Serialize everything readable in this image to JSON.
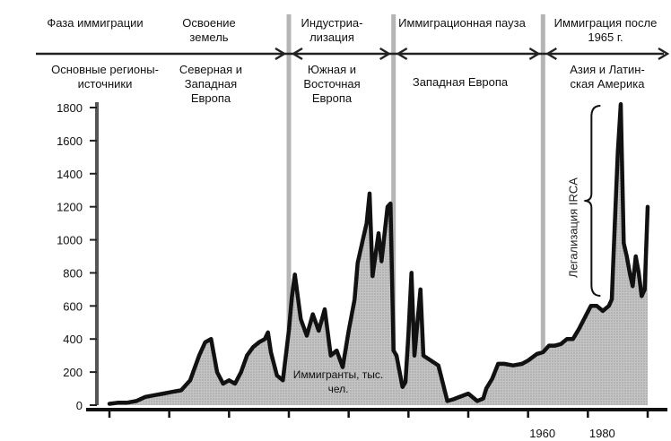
{
  "chart_data": {
    "type": "area",
    "title": "",
    "xlabel": "",
    "ylabel": "",
    "ylim": [
      0,
      1800
    ],
    "xlim": [
      1820,
      2000
    ],
    "yticks": [
      0,
      200,
      400,
      600,
      800,
      1000,
      1200,
      1400,
      1600,
      1800
    ],
    "xtick_labels": [
      {
        "x": 1960,
        "label": "1960"
      },
      {
        "x": 1980,
        "label": "1980"
      }
    ],
    "phase_header": {
      "row_label": "Фаза иммиграции",
      "source_row_label": "Основные регионы-источники",
      "phases": [
        {
          "name": "Освоение земель",
          "sources": "Северная и Западная Европа",
          "start": 1820,
          "end": 1880
        },
        {
          "name": "Индустриа-лизация",
          "sources": "Южная и Восточная Европа",
          "start": 1880,
          "end": 1915
        },
        {
          "name": "Иммиграционная пауза",
          "sources": "Западная Европа",
          "start": 1915,
          "end": 1965
        },
        {
          "name": "Иммиграция после 1965 г.",
          "sources": "Азия и Латин-ская Америка",
          "start": 1965,
          "end": 2000
        }
      ]
    },
    "annotations": {
      "series_label": "Иммигранты, тыс. чел.",
      "irca_label": "Легализация IRCA",
      "irca_start": 1989,
      "irca_end": 1991
    },
    "series": [
      {
        "name": "Иммигранты, тыс. чел.",
        "x": [
          1820,
          1823,
          1826,
          1829,
          1832,
          1835,
          1838,
          1841,
          1844,
          1847,
          1850,
          1852,
          1854,
          1856,
          1858,
          1860,
          1862,
          1864,
          1866,
          1868,
          1870,
          1872,
          1873,
          1874,
          1876,
          1878,
          1880,
          1881,
          1882,
          1884,
          1886,
          1888,
          1890,
          1892,
          1894,
          1896,
          1898,
          1900,
          1902,
          1903,
          1905,
          1906,
          1907,
          1908,
          1910,
          1911,
          1913,
          1914,
          1915,
          1916,
          1918,
          1919,
          1920,
          1921,
          1922,
          1924,
          1925,
          1930,
          1933,
          1935,
          1940,
          1943,
          1945,
          1946,
          1948,
          1950,
          1952,
          1955,
          1958,
          1960,
          1963,
          1965,
          1967,
          1969,
          1971,
          1973,
          1975,
          1977,
          1979,
          1981,
          1983,
          1985,
          1987,
          1988,
          1989,
          1990,
          1991,
          1992,
          1993,
          1994,
          1995,
          1996,
          1997,
          1998,
          1999,
          2000
        ],
        "values": [
          8,
          15,
          15,
          25,
          50,
          60,
          70,
          80,
          90,
          150,
          300,
          380,
          400,
          200,
          130,
          150,
          130,
          200,
          300,
          350,
          380,
          400,
          440,
          320,
          180,
          150,
          450,
          650,
          790,
          520,
          420,
          550,
          450,
          580,
          300,
          330,
          230,
          450,
          640,
          860,
          1020,
          1100,
          1280,
          780,
          1040,
          870,
          1200,
          1220,
          330,
          300,
          110,
          140,
          430,
          800,
          300,
          700,
          300,
          240,
          25,
          35,
          70,
          25,
          40,
          100,
          160,
          250,
          250,
          240,
          250,
          270,
          310,
          320,
          360,
          360,
          370,
          400,
          400,
          460,
          530,
          600,
          600,
          570,
          600,
          640,
          1090,
          1530,
          1820,
          980,
          900,
          800,
          720,
          900,
          800,
          660,
          700,
          1200
        ]
      }
    ]
  }
}
